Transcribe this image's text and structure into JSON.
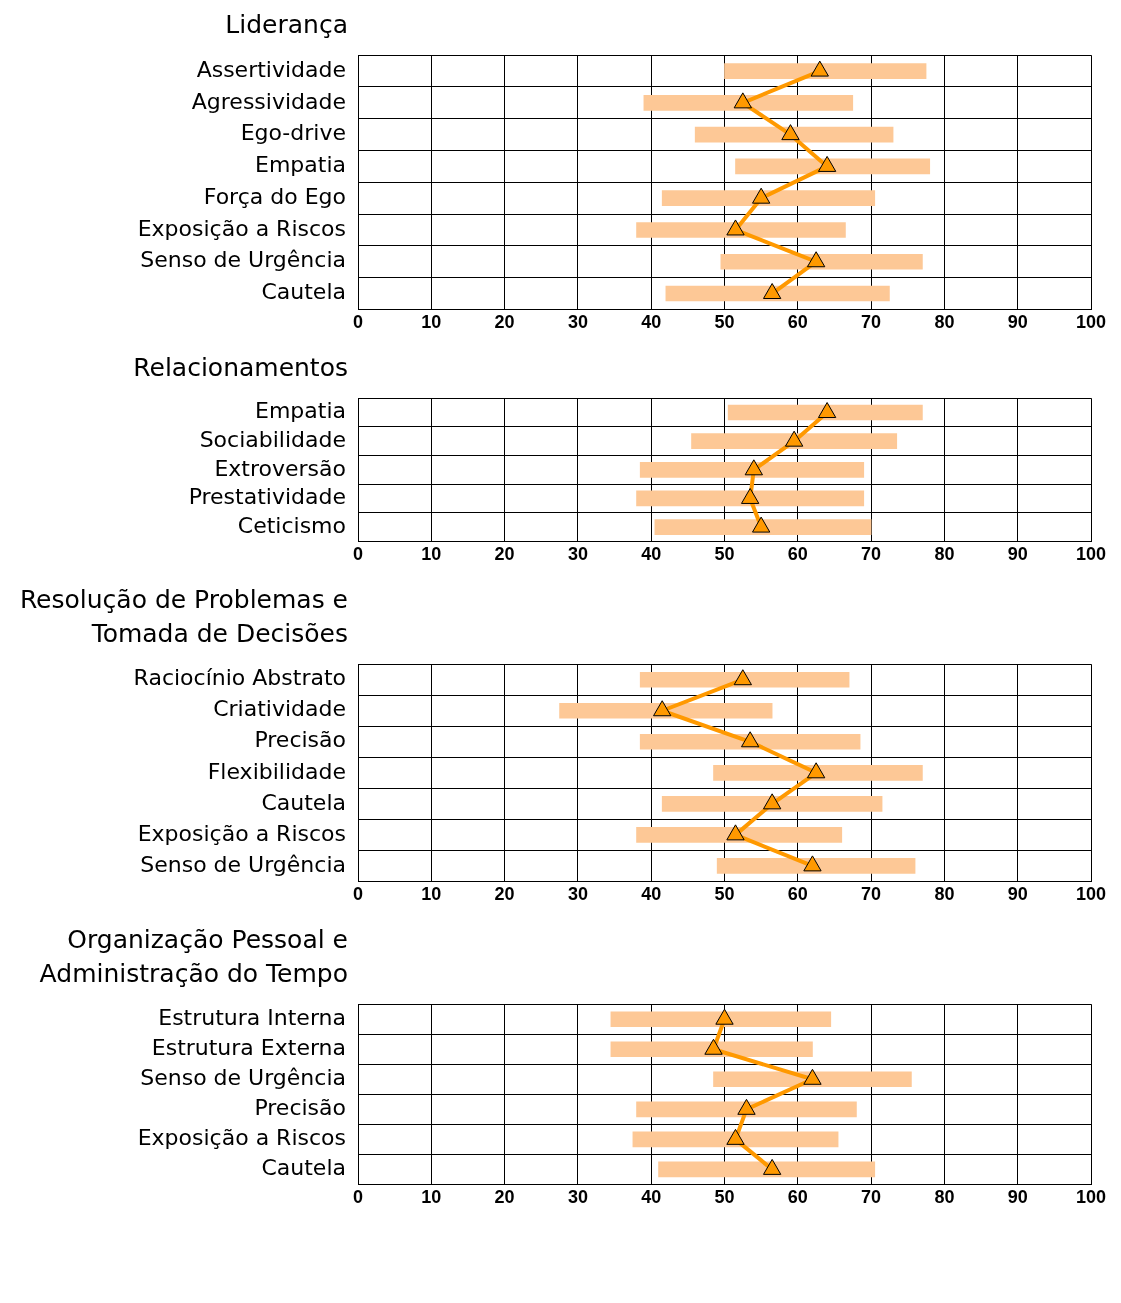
{
  "chart_data": [
    {
      "type": "bar",
      "orientation": "horizontal",
      "title": "Liderança",
      "categories": [
        "Assertividade",
        "Agressividade",
        "Ego-drive",
        "Empatia",
        "Força do Ego",
        "Exposição a Riscos",
        "Senso de Urgência",
        "Cautela"
      ],
      "marker": "triangle",
      "xlim": [
        0,
        100
      ],
      "xticks": [
        0,
        10,
        20,
        30,
        40,
        50,
        60,
        70,
        80,
        90,
        100
      ],
      "grid": true,
      "series": [
        {
          "color": "#fdc896",
          "base": [
            50,
            39,
            46,
            51.5,
            41.5,
            38,
            49.5,
            42
          ],
          "values": [
            27.5,
            28.5,
            27,
            26.5,
            29,
            28.5,
            27.5,
            30.5
          ]
        },
        {
          "type": "line",
          "color": "#ff9900",
          "values": [
            63,
            52.5,
            59,
            64,
            55,
            51.5,
            62.5,
            56.5
          ]
        }
      ]
    },
    {
      "type": "bar",
      "orientation": "horizontal",
      "title": "Relacionamentos",
      "categories": [
        "Empatia",
        "Sociabilidade",
        "Extroversão",
        "Prestatividade",
        "Ceticismo"
      ],
      "marker": "triangle",
      "xlim": [
        0,
        100
      ],
      "xticks": [
        0,
        10,
        20,
        30,
        40,
        50,
        60,
        70,
        80,
        90,
        100
      ],
      "grid": true,
      "series": [
        {
          "color": "#fdc896",
          "base": [
            50.5,
            45.5,
            38.5,
            38,
            40.5
          ],
          "values": [
            26.5,
            28,
            30.5,
            31,
            29.5
          ]
        },
        {
          "type": "line",
          "color": "#ff9900",
          "values": [
            64,
            59.5,
            54,
            53.5,
            55
          ]
        }
      ]
    },
    {
      "type": "bar",
      "orientation": "horizontal",
      "title": "Resolução de Problemas e Tomada de Decisões",
      "categories": [
        "Raciocínio Abstrato",
        "Criatividade",
        "Precisão",
        "Flexibilidade",
        "Cautela",
        "Exposição a Riscos",
        "Senso de Urgência"
      ],
      "marker": "triangle",
      "xlim": [
        0,
        100
      ],
      "xticks": [
        0,
        10,
        20,
        30,
        40,
        50,
        60,
        70,
        80,
        90,
        100
      ],
      "grid": true,
      "series": [
        {
          "color": "#fdc896",
          "base": [
            38.5,
            27.5,
            38.5,
            48.5,
            41.5,
            38,
            49
          ],
          "values": [
            28.5,
            29,
            30,
            28.5,
            30,
            28,
            27
          ]
        },
        {
          "type": "line",
          "color": "#ff9900",
          "values": [
            52.5,
            41.5,
            53.5,
            62.5,
            56.5,
            51.5,
            62
          ]
        }
      ]
    },
    {
      "type": "bar",
      "orientation": "horizontal",
      "title": "Organização Pessoal e Administração do Tempo",
      "categories": [
        "Estrutura Interna",
        "Estrutura Externa",
        "Senso de Urgência",
        "Precisão",
        "Exposição a Riscos",
        "Cautela"
      ],
      "marker": "triangle",
      "xlim": [
        0,
        100
      ],
      "xticks": [
        0,
        10,
        20,
        30,
        40,
        50,
        60,
        70,
        80,
        90,
        100
      ],
      "grid": true,
      "series": [
        {
          "color": "#fdc896",
          "base": [
            34.5,
            34.5,
            48.5,
            38,
            37.5,
            41
          ],
          "values": [
            30,
            27.5,
            27,
            30,
            28,
            29.5
          ]
        },
        {
          "type": "line",
          "color": "#ff9900",
          "values": [
            50,
            48.5,
            62,
            53,
            51.5,
            56.5
          ]
        }
      ]
    }
  ]
}
